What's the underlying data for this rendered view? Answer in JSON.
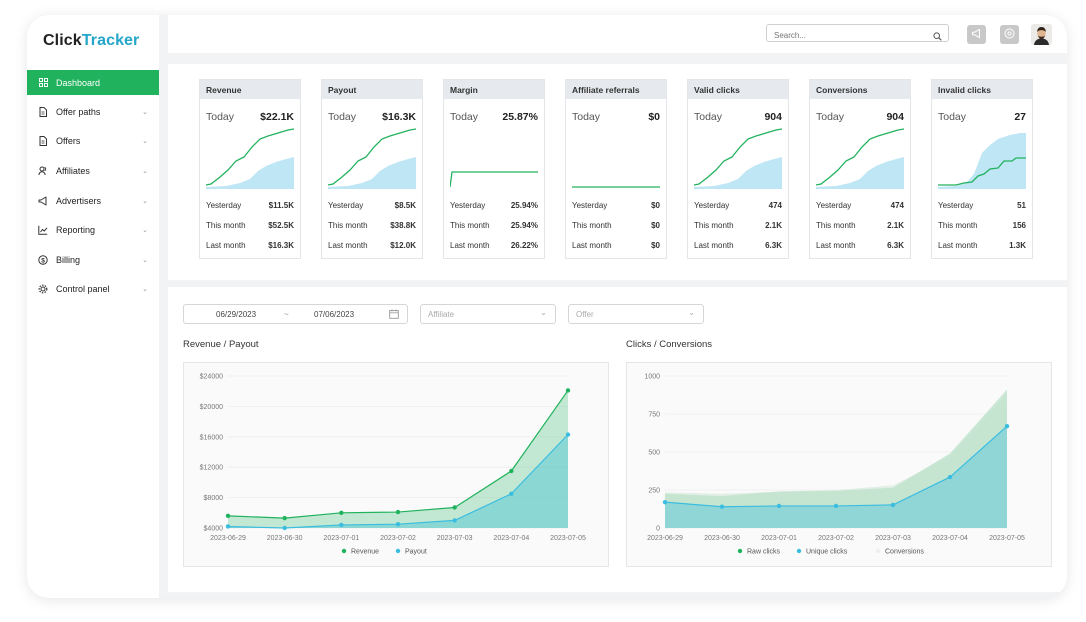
{
  "app": {
    "logo_part1": "Click",
    "logo_part2": "Tracker"
  },
  "colors": {
    "brand_green": "#21b25d",
    "brand_blue": "#23a6c9",
    "line_green": "#21b25d",
    "area_blue": "#bfe6f5",
    "revenue": "#21b25d",
    "payout": "#3bbde0"
  },
  "sidebar": {
    "items": [
      {
        "label": "Dashboard",
        "icon": "grid-icon",
        "active": true
      },
      {
        "label": "Offer paths",
        "icon": "file-icon"
      },
      {
        "label": "Offers",
        "icon": "file-icon"
      },
      {
        "label": "Affiliates",
        "icon": "users-icon"
      },
      {
        "label": "Advertisers",
        "icon": "megaphone-icon"
      },
      {
        "label": "Reporting",
        "icon": "line-chart-icon"
      },
      {
        "label": "Billing",
        "icon": "dollar-icon"
      },
      {
        "label": "Control panel",
        "icon": "gear-icon"
      }
    ]
  },
  "topbar": {
    "search_placeholder": "Search...",
    "icons": [
      "search-icon",
      "megaphone-icon",
      "help-icon",
      "avatar"
    ]
  },
  "stats": [
    {
      "title": "Revenue",
      "today_label": "Today",
      "today": "$22.1K",
      "spark": "growth",
      "yesterday_label": "Yesterday",
      "yesterday": "$11.5K",
      "this_month_label": "This month",
      "this_month": "$52.5K",
      "last_month_label": "Last month",
      "last_month": "$16.3K"
    },
    {
      "title": "Payout",
      "today_label": "Today",
      "today": "$16.3K",
      "spark": "growth",
      "yesterday_label": "Yesterday",
      "yesterday": "$8.5K",
      "this_month_label": "This month",
      "this_month": "$38.8K",
      "last_month_label": "Last month",
      "last_month": "$12.0K"
    },
    {
      "title": "Margin",
      "today_label": "Today",
      "today": "25.87%",
      "spark": "flat",
      "yesterday_label": "Yesterday",
      "yesterday": "25.94%",
      "this_month_label": "This month",
      "this_month": "25.94%",
      "last_month_label": "Last month",
      "last_month": "26.22%"
    },
    {
      "title": "Affiliate referrals",
      "today_label": "Today",
      "today": "$0",
      "spark": "zero",
      "yesterday_label": "Yesterday",
      "yesterday": "$0",
      "this_month_label": "This month",
      "this_month": "$0",
      "last_month_label": "Last month",
      "last_month": "$0"
    },
    {
      "title": "Valid clicks",
      "today_label": "Today",
      "today": "904",
      "spark": "growth",
      "yesterday_label": "Yesterday",
      "yesterday": "474",
      "this_month_label": "This month",
      "this_month": "2.1K",
      "last_month_label": "Last month",
      "last_month": "6.3K"
    },
    {
      "title": "Conversions",
      "today_label": "Today",
      "today": "904",
      "spark": "growth",
      "yesterday_label": "Yesterday",
      "yesterday": "474",
      "this_month_label": "This month",
      "this_month": "2.1K",
      "last_month_label": "Last month",
      "last_month": "6.3K"
    },
    {
      "title": "Invalid clicks",
      "today_label": "Today",
      "today": "27",
      "spark": "step",
      "yesterday_label": "Yesterday",
      "yesterday": "51",
      "this_month_label": "This month",
      "this_month": "156",
      "last_month_label": "Last month",
      "last_month": "1.3K"
    }
  ],
  "filters": {
    "date_from": "06/29/2023",
    "date_sep": "~",
    "date_to": "07/06/2023",
    "affiliate_placeholder": "Affiliate",
    "offer_placeholder": "Offer"
  },
  "charts": {
    "left_title": "Revenue / Payout",
    "right_title": "Clicks / Conversions"
  },
  "chart_data": [
    {
      "type": "area",
      "title": "Revenue / Payout",
      "x": [
        "2023-06-29",
        "2023-06-30",
        "2023-07-01",
        "2023-07-02",
        "2023-07-03",
        "2023-07-04",
        "2023-07-05"
      ],
      "yticks": [
        "$4000",
        "$8000",
        "$12000",
        "$16000",
        "$20000",
        "$24000"
      ],
      "ylim": [
        4000,
        24000
      ],
      "legend_position": "bottom",
      "series": [
        {
          "name": "Revenue",
          "values": [
            5600,
            5300,
            6000,
            6100,
            6700,
            11500,
            22100
          ]
        },
        {
          "name": "Payout",
          "values": [
            4200,
            4000,
            4400,
            4500,
            5000,
            8500,
            16300
          ]
        }
      ]
    },
    {
      "type": "area",
      "title": "Clicks / Conversions",
      "x": [
        "2023-06-29",
        "2023-06-30",
        "2023-07-01",
        "2023-07-02",
        "2023-07-03",
        "2023-07-04",
        "2023-07-05"
      ],
      "yticks": [
        "0",
        "250",
        "500",
        "750",
        "1000"
      ],
      "ylim": [
        0,
        1000
      ],
      "legend_position": "bottom",
      "series": [
        {
          "name": "Raw clicks",
          "values": [
            225,
            210,
            240,
            245,
            265,
            490,
            910
          ]
        },
        {
          "name": "Unique clicks",
          "values": [
            170,
            140,
            145,
            145,
            152,
            335,
            670
          ]
        },
        {
          "name": "Conversions",
          "values": [
            235,
            225,
            240,
            250,
            280,
            470,
            880
          ]
        }
      ]
    }
  ]
}
